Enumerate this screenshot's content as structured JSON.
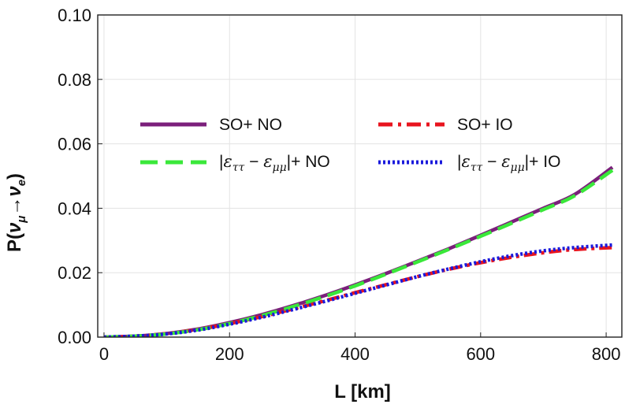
{
  "chart_data": {
    "type": "line",
    "title": "",
    "xlabel": "L [km]",
    "ylabel": {
      "main": "P(",
      "nu1": "ν",
      "sub1": "μ",
      "arrow": "→",
      "nu2": "ν",
      "sub2": "e",
      "close": ")"
    },
    "xlim": [
      -10,
      825
    ],
    "ylim": [
      0,
      0.1
    ],
    "xticks": [
      "0",
      "200",
      "400",
      "600",
      "800"
    ],
    "xtick_values": [
      0,
      200,
      400,
      600,
      800
    ],
    "yticks": [
      "0.00",
      "0.02",
      "0.04",
      "0.06",
      "0.08",
      "0.10"
    ],
    "ytick_values": [
      0,
      0.02,
      0.04,
      0.06,
      0.08,
      0.1
    ],
    "grid": true,
    "legend_placement": "upper-middle",
    "x": [
      0,
      50,
      100,
      150,
      200,
      250,
      300,
      350,
      400,
      450,
      500,
      550,
      600,
      650,
      700,
      750,
      810
    ],
    "series": [
      {
        "name": "SO+ NO",
        "name_parts": {
          "prefix": "SO+ NO"
        },
        "color": "#7b1f7b",
        "style": "solid",
        "values": [
          0,
          0.0003,
          0.0011,
          0.0025,
          0.0045,
          0.0069,
          0.0097,
          0.0128,
          0.0162,
          0.0198,
          0.0236,
          0.0275,
          0.0316,
          0.0358,
          0.04,
          0.0443,
          0.0527
        ]
      },
      {
        "name": "SO+ IO",
        "name_parts": {
          "prefix": "SO+ IO"
        },
        "color": "#e8141e",
        "style": "dashdot",
        "values": [
          0,
          0.0003,
          0.0011,
          0.0024,
          0.0042,
          0.0063,
          0.0087,
          0.0112,
          0.0138,
          0.0163,
          0.0188,
          0.0211,
          0.0231,
          0.0248,
          0.0262,
          0.0272,
          0.0278
        ]
      },
      {
        "name": "|ε_ττ − ε_μμ|+ NO",
        "name_parts": {
          "bar1": "|",
          "eps1": "ε",
          "sub1": "ττ",
          "minus": " − ",
          "eps2": "ε",
          "sub2": "μμ",
          "bar2": "|",
          "suffix": "+ NO"
        },
        "color": "#3ae83a",
        "style": "dashed",
        "values": [
          0,
          0.0003,
          0.001,
          0.0023,
          0.0042,
          0.0066,
          0.0094,
          0.0125,
          0.0159,
          0.0196,
          0.0234,
          0.0273,
          0.0313,
          0.0354,
          0.0396,
          0.0439,
          0.0518
        ]
      },
      {
        "name": "|ε_ττ − ε_μμ|+ IO",
        "name_parts": {
          "bar1": "|",
          "eps1": "ε",
          "sub1": "ττ",
          "minus": " − ",
          "eps2": "ε",
          "sub2": "μμ",
          "bar2": "|",
          "suffix": "+ IO"
        },
        "color": "#1a1adc",
        "style": "dotted",
        "values": [
          0,
          0.0003,
          0.001,
          0.0022,
          0.004,
          0.0061,
          0.0085,
          0.011,
          0.0136,
          0.0162,
          0.0188,
          0.0212,
          0.0234,
          0.0253,
          0.0268,
          0.0278,
          0.0286
        ]
      }
    ]
  }
}
